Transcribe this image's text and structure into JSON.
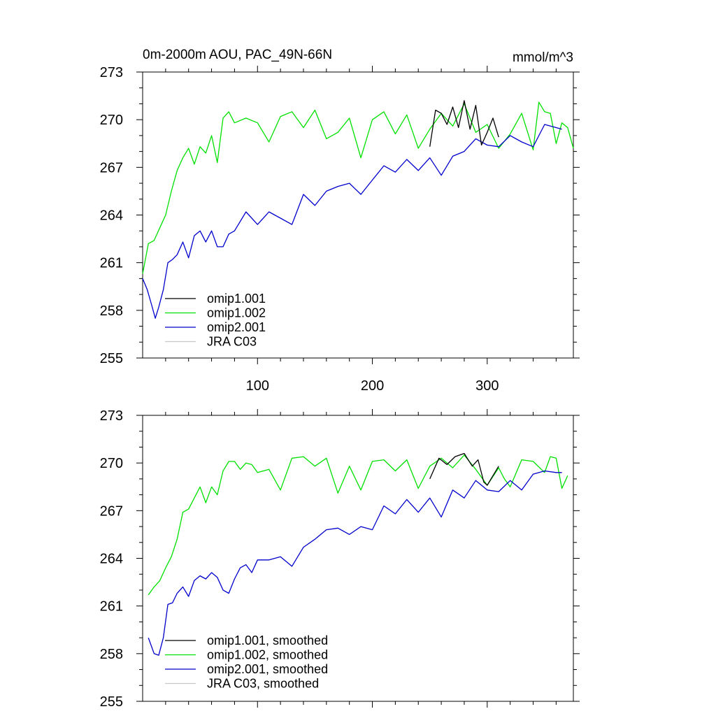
{
  "panel_top": {
    "title_left": "0m-2000m AOU, PAC_49N-66N",
    "title_right": "mmol/m^3"
  },
  "chart_data": [
    {
      "type": "line",
      "title": "0m-2000m AOU, PAC_49N-66N",
      "units": "mmol/m^3",
      "xlim": [
        0,
        375
      ],
      "ylim": [
        255,
        273
      ],
      "yticks": [
        255,
        258,
        261,
        264,
        267,
        270,
        273
      ],
      "xticks": [
        100,
        200,
        300
      ],
      "legend_position": "bottom-left",
      "series": [
        {
          "name": "omip1.001",
          "color": "#000000",
          "x": [
            250,
            255,
            260,
            265,
            270,
            275,
            280,
            285,
            290,
            295,
            300,
            305,
            310
          ],
          "y": [
            268.3,
            270.6,
            270.4,
            269.7,
            270.8,
            269.5,
            271.2,
            269.4,
            270.9,
            268.4,
            269.2,
            270.1,
            268.9
          ]
        },
        {
          "name": "omip1.002",
          "color": "#00e000",
          "x": [
            0,
            5,
            10,
            15,
            20,
            25,
            30,
            35,
            40,
            45,
            50,
            55,
            60,
            65,
            70,
            75,
            80,
            90,
            100,
            110,
            120,
            130,
            140,
            150,
            160,
            170,
            180,
            190,
            200,
            210,
            220,
            230,
            240,
            250,
            260,
            270,
            280,
            290,
            300,
            310,
            320,
            330,
            340,
            345,
            350,
            355,
            360,
            365,
            370,
            375
          ],
          "y": [
            260.3,
            262.2,
            262.4,
            263.2,
            264.0,
            265.5,
            266.8,
            267.6,
            268.2,
            267.2,
            268.3,
            267.9,
            269.0,
            267.3,
            270.1,
            270.5,
            269.8,
            270.1,
            269.8,
            268.6,
            270.2,
            270.5,
            269.5,
            270.6,
            268.8,
            269.2,
            270.1,
            267.6,
            270.0,
            270.5,
            269.1,
            270.3,
            268.2,
            269.4,
            270.4,
            269.6,
            271.0,
            269.2,
            269.7,
            268.2,
            269.1,
            270.4,
            268.1,
            271.1,
            270.5,
            270.4,
            268.5,
            269.8,
            269.5,
            268.2
          ]
        },
        {
          "name": "omip2.001",
          "color": "#0000cc",
          "x": [
            0,
            4,
            8,
            11,
            14,
            18,
            22,
            26,
            30,
            35,
            40,
            45,
            50,
            55,
            60,
            65,
            70,
            75,
            80,
            90,
            100,
            110,
            120,
            130,
            140,
            150,
            160,
            170,
            180,
            190,
            200,
            210,
            220,
            230,
            240,
            250,
            260,
            270,
            280,
            290,
            300,
            310,
            320,
            330,
            340,
            350,
            360,
            365
          ],
          "y": [
            260.0,
            259.3,
            258.3,
            257.5,
            258.2,
            259.3,
            261.0,
            261.2,
            261.5,
            262.3,
            261.3,
            262.7,
            263.0,
            262.3,
            263.0,
            262.0,
            262.0,
            262.8,
            263.0,
            264.2,
            263.4,
            264.2,
            263.8,
            263.4,
            265.3,
            264.6,
            265.5,
            265.8,
            266.0,
            265.3,
            266.2,
            267.1,
            266.7,
            267.5,
            266.8,
            267.6,
            266.5,
            267.7,
            268.0,
            268.8,
            268.4,
            268.3,
            269.0,
            268.6,
            268.3,
            269.7,
            269.5,
            269.4
          ]
        },
        {
          "name": "JRA C03",
          "color": "#c8c8c8",
          "x": [],
          "y": []
        }
      ]
    },
    {
      "type": "line",
      "xlim": [
        0,
        375
      ],
      "ylim": [
        255,
        273
      ],
      "yticks": [
        255,
        258,
        261,
        264,
        267,
        270,
        273
      ],
      "legend_position": "bottom-left",
      "series": [
        {
          "name": "omip1.001, smoothed",
          "color": "#000000",
          "x": [
            250,
            258,
            265,
            272,
            280,
            287,
            292,
            297,
            300,
            305,
            310
          ],
          "y": [
            269.0,
            270.3,
            269.9,
            270.4,
            270.6,
            269.8,
            270.2,
            268.8,
            268.6,
            269.2,
            269.8
          ]
        },
        {
          "name": "omip1.002, smoothed",
          "color": "#00e000",
          "x": [
            5,
            10,
            15,
            20,
            25,
            30,
            35,
            40,
            45,
            50,
            55,
            60,
            65,
            70,
            75,
            80,
            85,
            90,
            95,
            100,
            110,
            120,
            130,
            140,
            150,
            160,
            170,
            180,
            190,
            200,
            210,
            220,
            230,
            240,
            250,
            260,
            270,
            280,
            290,
            300,
            310,
            315,
            320,
            330,
            340,
            350,
            355,
            360,
            365,
            370
          ],
          "y": [
            261.7,
            262.2,
            262.6,
            263.4,
            264.1,
            265.2,
            266.9,
            267.1,
            267.8,
            268.5,
            267.5,
            268.5,
            268.0,
            269.5,
            270.1,
            270.1,
            269.6,
            270.0,
            269.9,
            269.4,
            269.6,
            268.3,
            270.3,
            270.4,
            269.8,
            270.3,
            268.1,
            269.8,
            268.3,
            270.1,
            270.2,
            269.5,
            270.2,
            268.4,
            269.8,
            270.3,
            269.7,
            270.5,
            269.6,
            268.6,
            269.7,
            269.0,
            268.5,
            270.2,
            270.1,
            269.4,
            270.4,
            270.3,
            268.4,
            269.2
          ]
        },
        {
          "name": "omip2.001, smoothed",
          "color": "#0000cc",
          "x": [
            5,
            10,
            14,
            18,
            22,
            26,
            30,
            35,
            40,
            45,
            50,
            55,
            60,
            65,
            70,
            75,
            80,
            85,
            90,
            95,
            100,
            110,
            120,
            130,
            140,
            150,
            160,
            170,
            180,
            190,
            200,
            210,
            220,
            230,
            240,
            250,
            260,
            270,
            280,
            290,
            300,
            310,
            320,
            330,
            340,
            350,
            360,
            365
          ],
          "y": [
            259.0,
            258.0,
            257.9,
            259.0,
            261.1,
            261.2,
            261.8,
            262.2,
            261.6,
            262.6,
            262.9,
            262.7,
            263.1,
            262.8,
            262.0,
            261.8,
            262.7,
            263.4,
            263.6,
            263.1,
            263.9,
            263.9,
            264.1,
            263.5,
            264.7,
            265.2,
            265.8,
            265.9,
            265.5,
            266.0,
            265.8,
            267.3,
            266.8,
            267.7,
            266.9,
            267.8,
            266.6,
            268.3,
            267.8,
            268.9,
            268.3,
            268.2,
            268.9,
            268.3,
            269.3,
            269.5,
            269.4,
            269.4
          ]
        },
        {
          "name": "JRA C03, smoothed",
          "color": "#c8c8c8",
          "x": [],
          "y": []
        }
      ]
    }
  ]
}
